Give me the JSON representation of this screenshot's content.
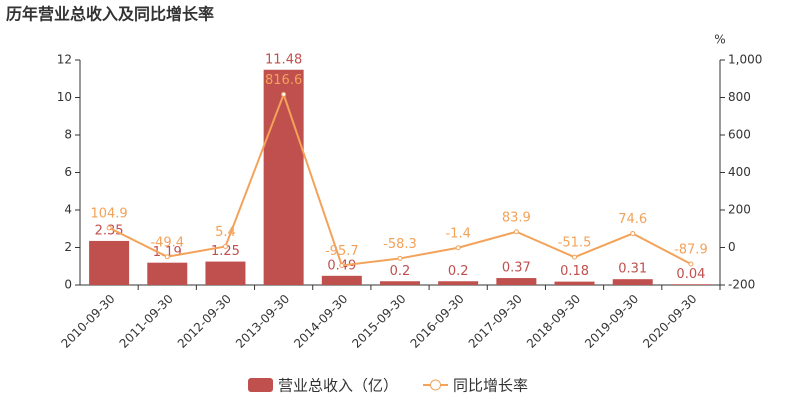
{
  "chart_data": {
    "type": "bar",
    "title": "历年营业总收入及同比增长率",
    "categories": [
      "2010-09-30",
      "2011-09-30",
      "2012-09-30",
      "2013-09-30",
      "2014-09-30",
      "2015-09-30",
      "2016-09-30",
      "2017-09-30",
      "2018-09-30",
      "2019-09-30",
      "2020-09-30"
    ],
    "series": [
      {
        "name": "营业总收入（亿）",
        "type": "bar",
        "color": "#c0504e",
        "values": [
          2.35,
          1.19,
          1.25,
          11.48,
          0.49,
          0.2,
          0.2,
          0.37,
          0.18,
          0.31,
          0.04
        ]
      },
      {
        "name": "同比增长率",
        "type": "line",
        "axis": "y2",
        "color": "#f3a25a",
        "values": [
          104.9,
          -49.4,
          5.4,
          816.6,
          -95.7,
          -58.3,
          -1.4,
          83.9,
          -51.5,
          74.6,
          -87.9
        ]
      }
    ],
    "ylim": [
      0,
      12
    ],
    "yticks": [
      0,
      2,
      4,
      6,
      8,
      10,
      12
    ],
    "y2lim": [
      -200,
      1000
    ],
    "y2ticks": [
      -200,
      0,
      200,
      400,
      600,
      800,
      {
        "value": 1000,
        "label": "1,000"
      }
    ],
    "y2_unit": "%",
    "grid": false
  }
}
